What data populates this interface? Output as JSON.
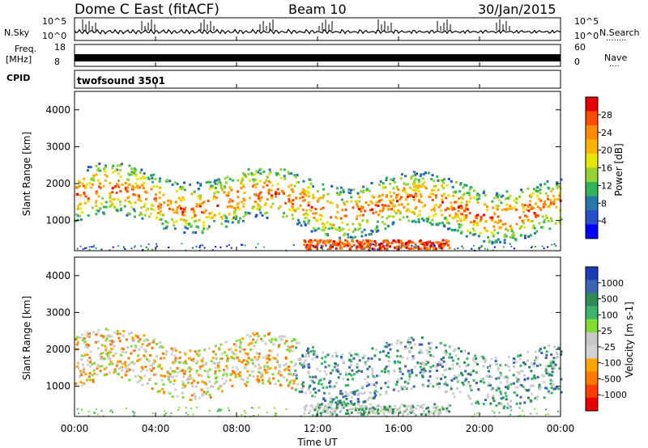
{
  "header": {
    "station": "Dome C East (fitACF)",
    "beam": "Beam 10",
    "date": "30/Jan/2015"
  },
  "noise_panel": {
    "left_label": "N.Sky",
    "right_label": "N.Search",
    "left_ticks": [
      "10^5",
      "10^0"
    ],
    "right_ticks": [
      "10^5",
      "10^0"
    ]
  },
  "freq_panel": {
    "left_label_1": "Freq.",
    "left_label_2": "[MHz]",
    "right_label": "Nave",
    "left_ticks": [
      "18",
      "8"
    ],
    "right_ticks": [
      "60",
      "0"
    ]
  },
  "cpid_panel": {
    "label": "CPID",
    "program": "twofsound 3501"
  },
  "chart_data": [
    {
      "type": "heatmap",
      "title": "",
      "xlabel": "",
      "ylabel": "Slant Range [km]",
      "y_ticks": [
        "1000",
        "2000",
        "3000",
        "4000"
      ],
      "ylim": [
        180,
        4500
      ],
      "colorbar": {
        "label": "Power [dB]",
        "ticks": [
          "28",
          "24",
          "20",
          "16",
          "12",
          "8",
          "4"
        ],
        "colors": [
          "#e60000",
          "#ff4a00",
          "#ff8c00",
          "#ffb400",
          "#e6e600",
          "#96d232",
          "#32b45a",
          "#2878aa",
          "#2850c8",
          "#0000ff"
        ]
      },
      "grid": false
    },
    {
      "type": "heatmap",
      "title": "",
      "xlabel": "Time UT",
      "ylabel": "Slant Range [km]",
      "x_ticks": [
        "00:00",
        "04:00",
        "08:00",
        "12:00",
        "16:00",
        "20:00",
        "00:00"
      ],
      "y_ticks": [
        "1000",
        "2000",
        "3000",
        "4000"
      ],
      "ylim": [
        180,
        4500
      ],
      "colorbar": {
        "label": "Velocity [m s-1]",
        "ticks": [
          "1000",
          "500",
          "100",
          "25",
          "-25",
          "-100",
          "-500",
          "-1000"
        ],
        "colors": [
          "#1e3cb4",
          "#3c64b4",
          "#2e8b57",
          "#3cb46e",
          "#82dc32",
          "#c8c8c8",
          "#d2d2d2",
          "#ffa500",
          "#ff7800",
          "#ff3c00",
          "#e60000"
        ]
      },
      "grid": false
    }
  ]
}
